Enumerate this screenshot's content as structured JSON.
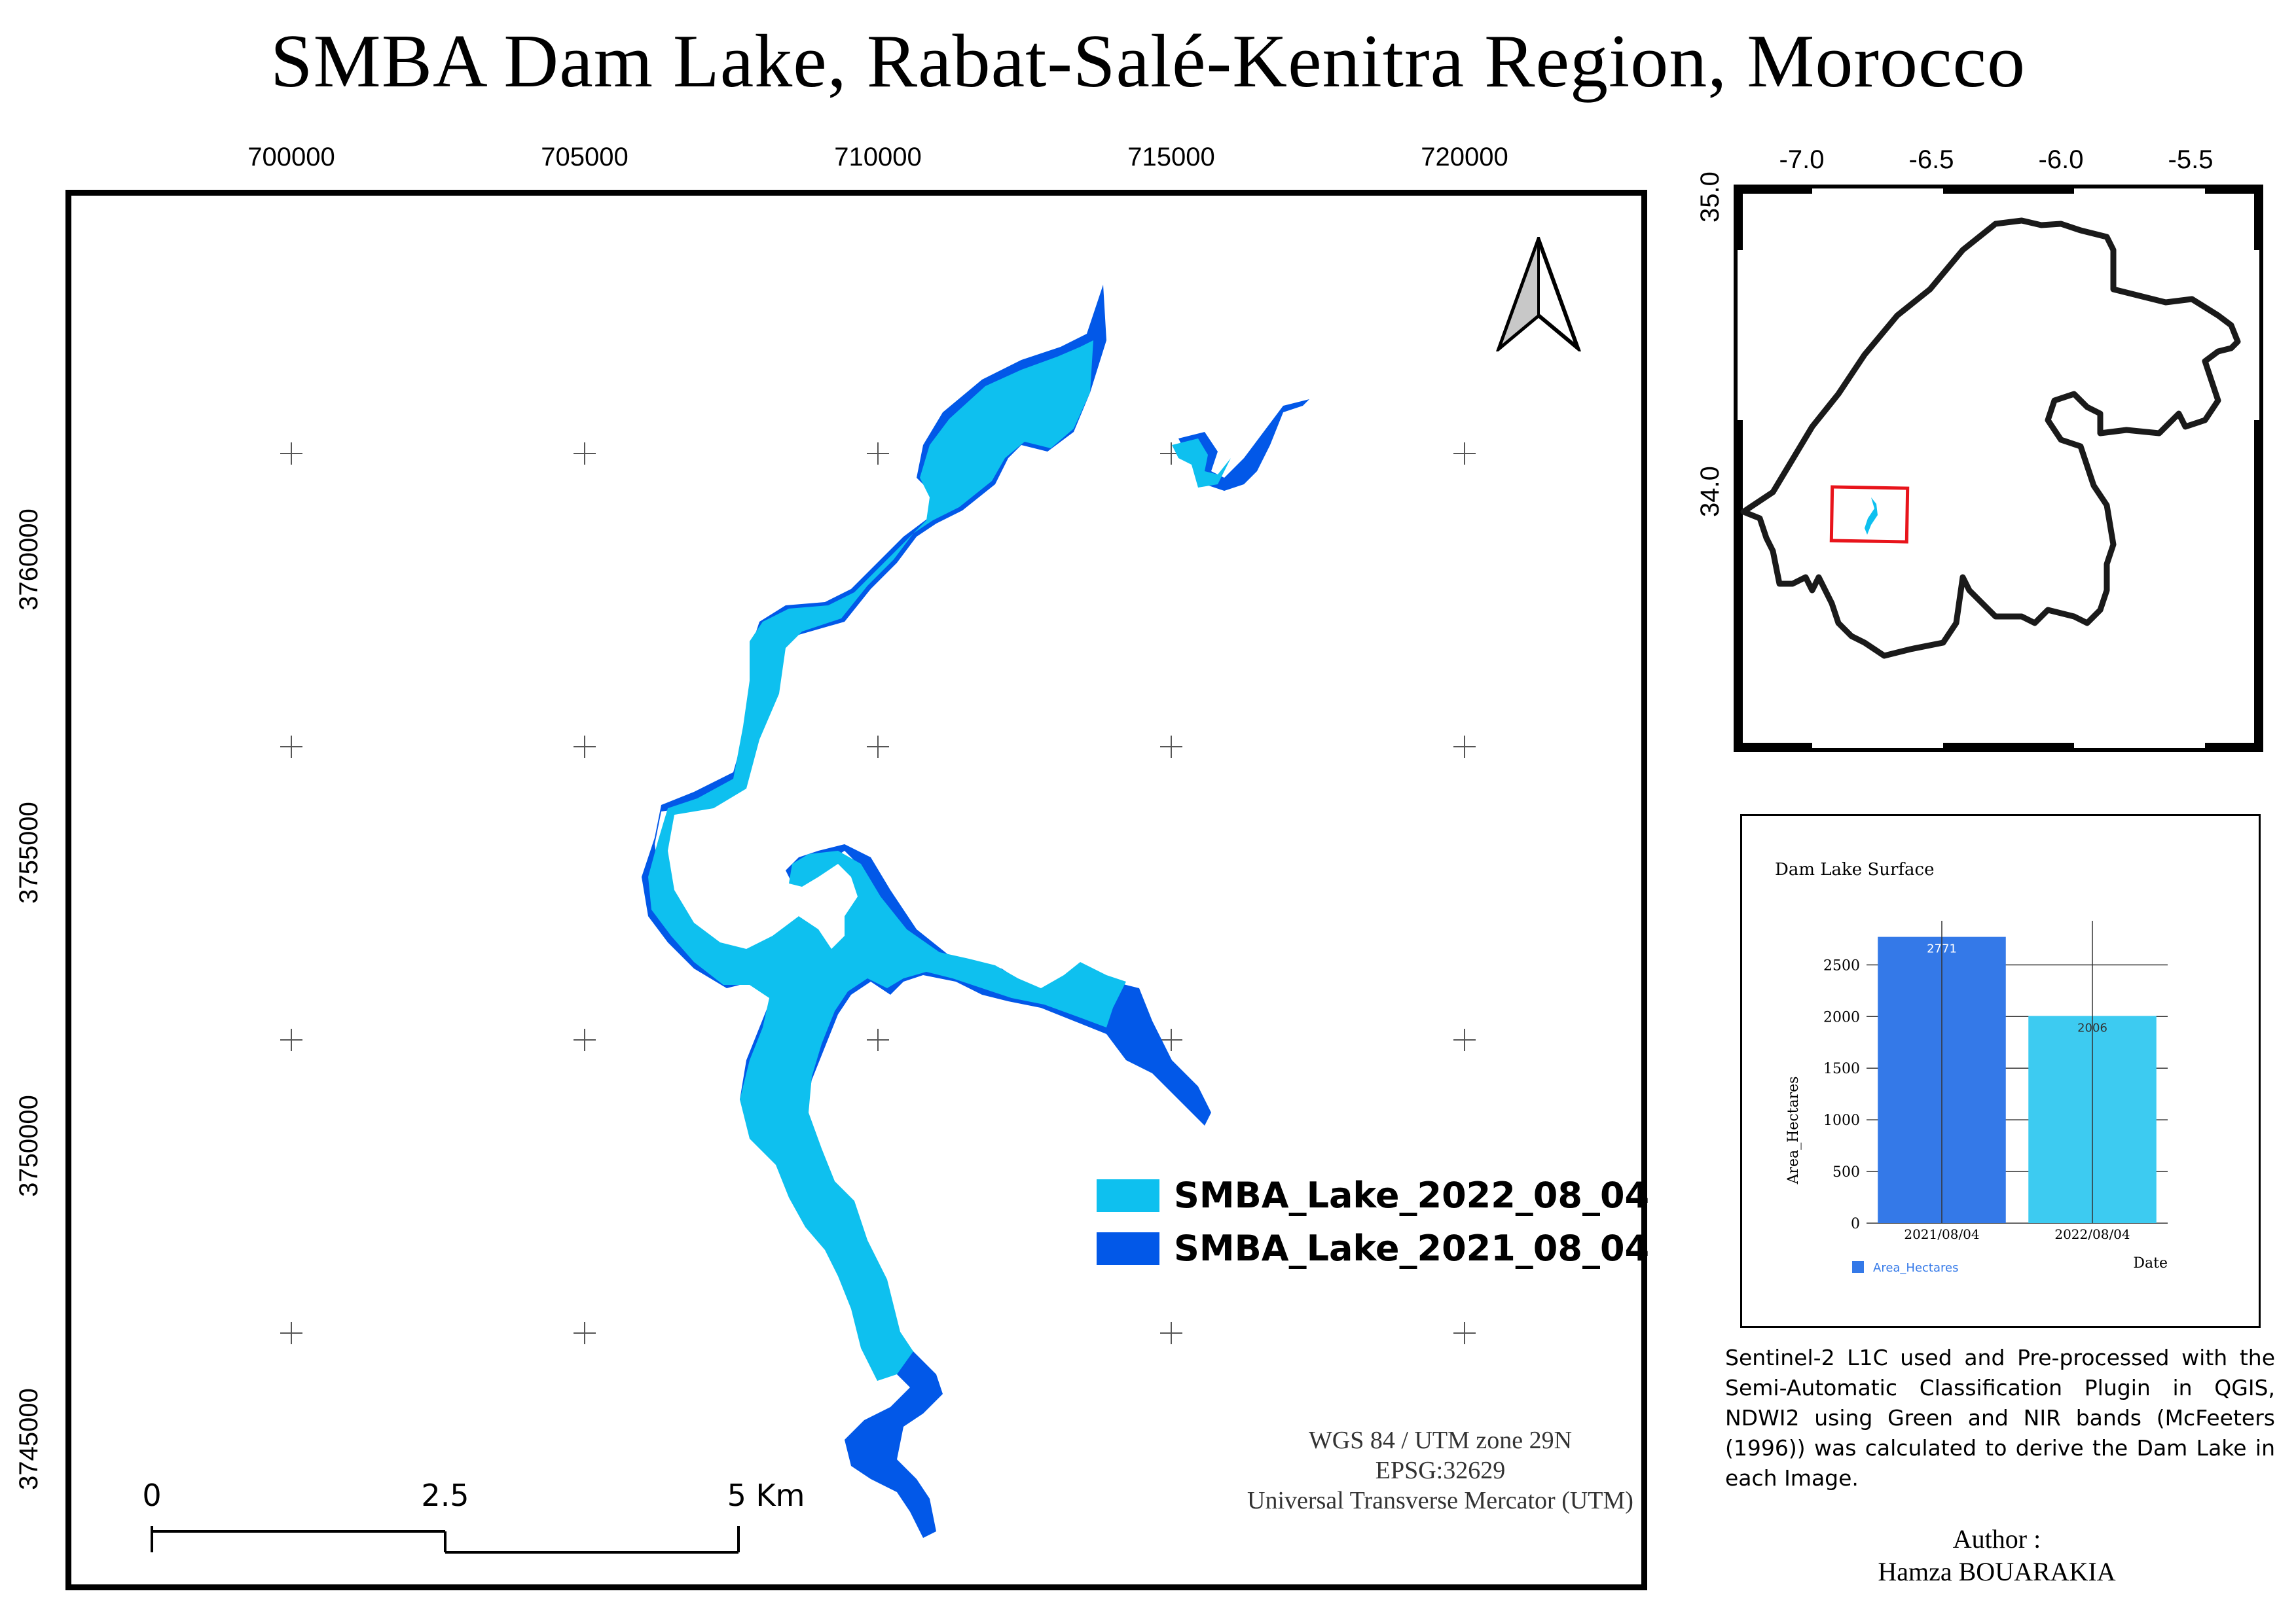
{
  "title": "SMBA Dam Lake, Rabat-Salé-Kenitra Region, Morocco",
  "main_map": {
    "x_ticks": [
      "700000",
      "705000",
      "710000",
      "715000",
      "720000"
    ],
    "y_ticks": [
      "3760000",
      "3755000",
      "3750000",
      "3745000"
    ],
    "north_arrow": "north-arrow-icon",
    "legend": [
      {
        "label": "SMBA_Lake_2022_08_04",
        "color": "#0ec0ef"
      },
      {
        "label": "SMBA_Lake_2021_08_04",
        "color": "#0258e8"
      }
    ],
    "crs": {
      "line1": "WGS 84 / UTM zone 29N",
      "line2": "EPSG:32629",
      "line3": "Universal Transverse Mercator (UTM)"
    },
    "scale_bar": {
      "label_0": "0",
      "label_mid": "2.5",
      "label_end": "5 Km"
    }
  },
  "inset_map": {
    "x_ticks": [
      "-7.0",
      "-6.5",
      "-6.0",
      "-5.5"
    ],
    "y_ticks": [
      "35.0",
      "34.0"
    ],
    "highlight_color": "#e8141b"
  },
  "chart_data": {
    "type": "bar",
    "title": "Dam Lake Surface",
    "categories": [
      "2021/08/04",
      "2022/08/04"
    ],
    "values": [
      2771,
      2006
    ],
    "bar_colors": [
      "#3479e8",
      "#3dcbf1"
    ],
    "xlabel": "Date",
    "ylabel": "Area_Hectares",
    "ylim": [
      0,
      2800
    ],
    "yticks": [
      0,
      500,
      1000,
      1500,
      2000,
      2500
    ],
    "legend": "Area_Hectares",
    "grid": true
  },
  "caption": "Sentinel-2 L1C used and Pre-processed with the Semi-Automatic Classification Plugin in QGIS, NDWI2 using Green and NIR bands (McFeeters (1996)) was calculated to derive the Dam Lake in each Image.",
  "author": {
    "label": "Author :",
    "name": "Hamza BOUARAKIA"
  }
}
